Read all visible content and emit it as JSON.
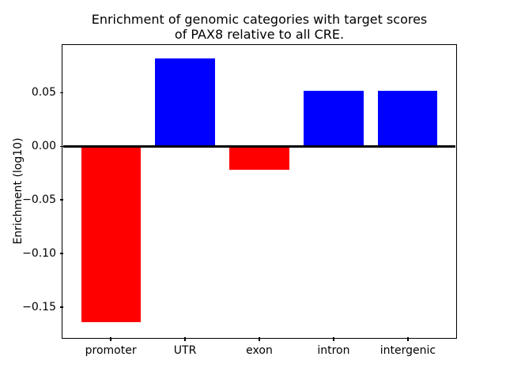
{
  "chart_data": {
    "type": "bar",
    "title": "Enrichment of genomic categories with target scores of PAX8 relative to all CRE.",
    "title_lines": [
      "Enrichment of genomic categories with target scores",
      "of PAX8 relative to all CRE."
    ],
    "xlabel": "",
    "ylabel": "Enrichment (log10)",
    "categories": [
      "promoter",
      "UTR",
      "exon",
      "intron",
      "intergenic"
    ],
    "values": [
      -0.164,
      0.082,
      -0.022,
      0.052,
      0.052
    ],
    "colors": [
      "#ff0000",
      "#0000ff",
      "#ff0000",
      "#0000ff",
      "#0000ff"
    ],
    "color_meaning": {
      "positive": "#0000ff",
      "negative": "#ff0000"
    },
    "bar_width": 0.8,
    "xlim": [
      -0.64,
      4.64
    ],
    "ylim": [
      -0.178,
      0.094
    ],
    "yticks": [
      0.05,
      0,
      -0.05,
      -0.1,
      -0.15
    ],
    "ytick_labels": [
      "0.05",
      "0.00",
      "−0.05",
      "−0.10",
      "−0.15"
    ],
    "zero_line": true,
    "grid": false,
    "legend": "none",
    "background": "#ffffff",
    "axis_color": "#000000"
  }
}
